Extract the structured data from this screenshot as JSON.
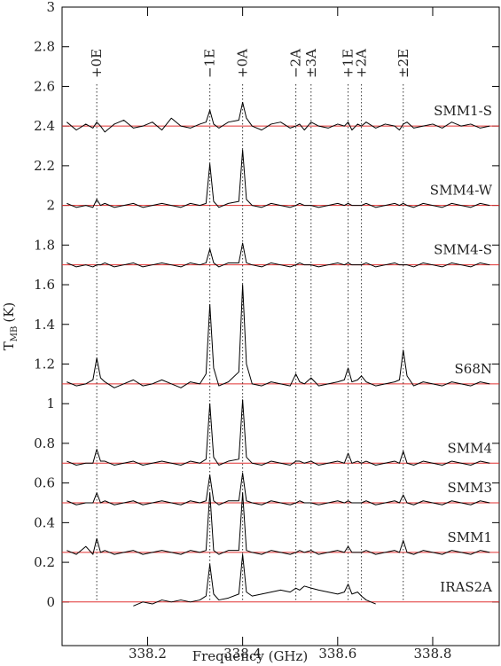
{
  "chart_data": {
    "type": "line",
    "xlabel": "Frequency (GHz)",
    "ylabel": {
      "symbol": "T",
      "subscript": "MB",
      "unit": "(K)"
    },
    "xlim": [
      338.02,
      338.94
    ],
    "xticks": [
      338.2,
      338.4,
      338.6,
      338.8
    ],
    "ylim": [
      -0.22,
      3
    ],
    "yticks": [
      0,
      0.2,
      0.4,
      0.6,
      0.8,
      1,
      1.2,
      1.4,
      1.6,
      1.8,
      2,
      2.2,
      2.4,
      2.6,
      2.8,
      3
    ],
    "baseline_color": "#e03030",
    "transitions": [
      {
        "label": "+0E",
        "x": 338.093
      },
      {
        "label": "−1E",
        "x": 338.331
      },
      {
        "label": "+0A",
        "x": 338.4
      },
      {
        "label": "−2A",
        "x": 338.512
      },
      {
        "label": "±3A",
        "x": 338.544
      },
      {
        "label": "+1E",
        "x": 338.622
      },
      {
        "label": "+2A",
        "x": 338.65
      },
      {
        "label": "±2E",
        "x": 338.738
      }
    ],
    "x": [
      338.03,
      338.05,
      338.07,
      338.085,
      338.093,
      338.101,
      338.11,
      338.13,
      338.15,
      338.17,
      338.19,
      338.21,
      338.23,
      338.25,
      338.27,
      338.29,
      338.31,
      338.323,
      338.331,
      338.339,
      338.35,
      338.37,
      338.392,
      338.4,
      338.408,
      338.42,
      338.44,
      338.46,
      338.48,
      338.5,
      338.512,
      338.52,
      338.53,
      338.544,
      338.56,
      338.58,
      338.6,
      338.614,
      338.622,
      338.63,
      338.642,
      338.65,
      338.66,
      338.68,
      338.7,
      338.72,
      338.73,
      338.738,
      338.746,
      338.76,
      338.78,
      338.8,
      338.82,
      338.84,
      338.86,
      338.88,
      338.9,
      338.92
    ],
    "series": [
      {
        "name": "SMM1-S",
        "color": "#000000",
        "baseline": 2.4,
        "values": [
          2.42,
          2.38,
          2.41,
          2.39,
          2.42,
          2.4,
          2.37,
          2.41,
          2.43,
          2.39,
          2.4,
          2.42,
          2.38,
          2.44,
          2.4,
          2.39,
          2.41,
          2.42,
          2.48,
          2.41,
          2.39,
          2.42,
          2.43,
          2.52,
          2.44,
          2.4,
          2.38,
          2.41,
          2.42,
          2.39,
          2.4,
          2.41,
          2.38,
          2.42,
          2.4,
          2.39,
          2.41,
          2.4,
          2.42,
          2.38,
          2.41,
          2.4,
          2.42,
          2.39,
          2.41,
          2.4,
          2.38,
          2.41,
          2.42,
          2.39,
          2.4,
          2.41,
          2.39,
          2.42,
          2.4,
          2.41,
          2.39,
          2.4
        ]
      },
      {
        "name": "SMM4-W",
        "color": "#000000",
        "baseline": 2,
        "values": [
          2.01,
          1.99,
          2.0,
          1.99,
          2.03,
          2.0,
          2.01,
          1.99,
          2.0,
          2.01,
          1.99,
          2.0,
          2.01,
          2.0,
          1.99,
          2.01,
          2.0,
          2.01,
          2.21,
          2.02,
          1.99,
          2.01,
          2.02,
          2.28,
          2.03,
          2.0,
          1.99,
          2.01,
          2.0,
          1.99,
          2.0,
          2.01,
          2.0,
          2.0,
          1.99,
          2.0,
          2.01,
          2.0,
          2.01,
          2.0,
          2.0,
          2.0,
          2.01,
          1.99,
          2.0,
          2.01,
          2.0,
          2.01,
          2.0,
          1.99,
          2.01,
          2.0,
          1.99,
          2.01,
          2.0,
          1.99,
          2.01,
          2.0
        ]
      },
      {
        "name": "SMM4-S",
        "color": "#000000",
        "baseline": 1.7,
        "values": [
          1.71,
          1.69,
          1.7,
          1.69,
          1.7,
          1.7,
          1.71,
          1.69,
          1.7,
          1.71,
          1.69,
          1.7,
          1.71,
          1.7,
          1.69,
          1.71,
          1.7,
          1.71,
          1.78,
          1.71,
          1.69,
          1.71,
          1.71,
          1.81,
          1.71,
          1.7,
          1.69,
          1.71,
          1.7,
          1.69,
          1.7,
          1.71,
          1.7,
          1.7,
          1.69,
          1.7,
          1.71,
          1.7,
          1.71,
          1.7,
          1.7,
          1.7,
          1.71,
          1.69,
          1.7,
          1.71,
          1.7,
          1.7,
          1.7,
          1.69,
          1.71,
          1.7,
          1.69,
          1.71,
          1.7,
          1.69,
          1.71,
          1.7
        ]
      },
      {
        "name": "S68N",
        "color": "#000000",
        "baseline": 1.1,
        "values": [
          1.11,
          1.09,
          1.1,
          1.12,
          1.23,
          1.13,
          1.11,
          1.08,
          1.1,
          1.12,
          1.09,
          1.1,
          1.12,
          1.1,
          1.08,
          1.11,
          1.1,
          1.15,
          1.5,
          1.18,
          1.09,
          1.11,
          1.16,
          1.6,
          1.2,
          1.1,
          1.09,
          1.11,
          1.1,
          1.09,
          1.15,
          1.11,
          1.1,
          1.13,
          1.09,
          1.1,
          1.11,
          1.12,
          1.18,
          1.11,
          1.12,
          1.14,
          1.11,
          1.09,
          1.1,
          1.11,
          1.12,
          1.27,
          1.14,
          1.09,
          1.11,
          1.1,
          1.09,
          1.11,
          1.1,
          1.09,
          1.11,
          1.1
        ]
      },
      {
        "name": "SMM4",
        "color": "#000000",
        "baseline": 0.7,
        "values": [
          0.71,
          0.69,
          0.7,
          0.7,
          0.77,
          0.71,
          0.71,
          0.69,
          0.7,
          0.71,
          0.69,
          0.7,
          0.71,
          0.7,
          0.69,
          0.71,
          0.7,
          0.72,
          1.0,
          0.73,
          0.69,
          0.71,
          0.72,
          1.02,
          0.73,
          0.7,
          0.69,
          0.71,
          0.7,
          0.69,
          0.71,
          0.71,
          0.7,
          0.71,
          0.69,
          0.7,
          0.71,
          0.7,
          0.75,
          0.7,
          0.71,
          0.7,
          0.71,
          0.69,
          0.7,
          0.71,
          0.7,
          0.76,
          0.7,
          0.69,
          0.71,
          0.7,
          0.69,
          0.71,
          0.7,
          0.69,
          0.71,
          0.7
        ]
      },
      {
        "name": "SMM3",
        "color": "#000000",
        "baseline": 0.5,
        "values": [
          0.51,
          0.49,
          0.5,
          0.5,
          0.55,
          0.5,
          0.51,
          0.49,
          0.5,
          0.51,
          0.49,
          0.5,
          0.51,
          0.5,
          0.49,
          0.51,
          0.5,
          0.51,
          0.64,
          0.51,
          0.49,
          0.51,
          0.51,
          0.65,
          0.51,
          0.5,
          0.49,
          0.51,
          0.5,
          0.49,
          0.5,
          0.51,
          0.5,
          0.5,
          0.49,
          0.5,
          0.51,
          0.5,
          0.51,
          0.5,
          0.5,
          0.5,
          0.51,
          0.49,
          0.5,
          0.51,
          0.5,
          0.54,
          0.5,
          0.49,
          0.51,
          0.5,
          0.49,
          0.51,
          0.5,
          0.49,
          0.51,
          0.5
        ]
      },
      {
        "name": "SMM1",
        "color": "#000000",
        "baseline": 0.25,
        "values": [
          0.26,
          0.24,
          0.28,
          0.24,
          0.32,
          0.25,
          0.26,
          0.24,
          0.25,
          0.26,
          0.24,
          0.25,
          0.26,
          0.25,
          0.24,
          0.26,
          0.25,
          0.26,
          0.55,
          0.26,
          0.24,
          0.26,
          0.26,
          0.55,
          0.26,
          0.25,
          0.24,
          0.26,
          0.25,
          0.24,
          0.25,
          0.26,
          0.25,
          0.26,
          0.24,
          0.25,
          0.26,
          0.25,
          0.28,
          0.25,
          0.25,
          0.25,
          0.26,
          0.24,
          0.25,
          0.26,
          0.25,
          0.31,
          0.25,
          0.24,
          0.26,
          0.25,
          0.24,
          0.26,
          0.25,
          0.24,
          0.26,
          0.25
        ]
      },
      {
        "name": "IRAS2A",
        "color": "#000000",
        "baseline": 0,
        "values": [
          null,
          null,
          null,
          null,
          null,
          null,
          null,
          null,
          null,
          -0.02,
          0.0,
          -0.01,
          0.01,
          0.0,
          0.01,
          0.0,
          0.01,
          0.03,
          0.19,
          0.04,
          0.01,
          0.02,
          0.04,
          0.24,
          0.05,
          0.03,
          0.04,
          0.05,
          0.06,
          0.05,
          0.07,
          0.06,
          0.08,
          0.07,
          0.06,
          0.05,
          0.04,
          0.05,
          0.09,
          0.04,
          0.05,
          0.03,
          0.01,
          -0.01,
          null,
          null,
          null,
          null,
          null,
          null,
          null,
          null,
          null,
          null,
          null,
          null,
          null,
          null
        ]
      }
    ]
  }
}
